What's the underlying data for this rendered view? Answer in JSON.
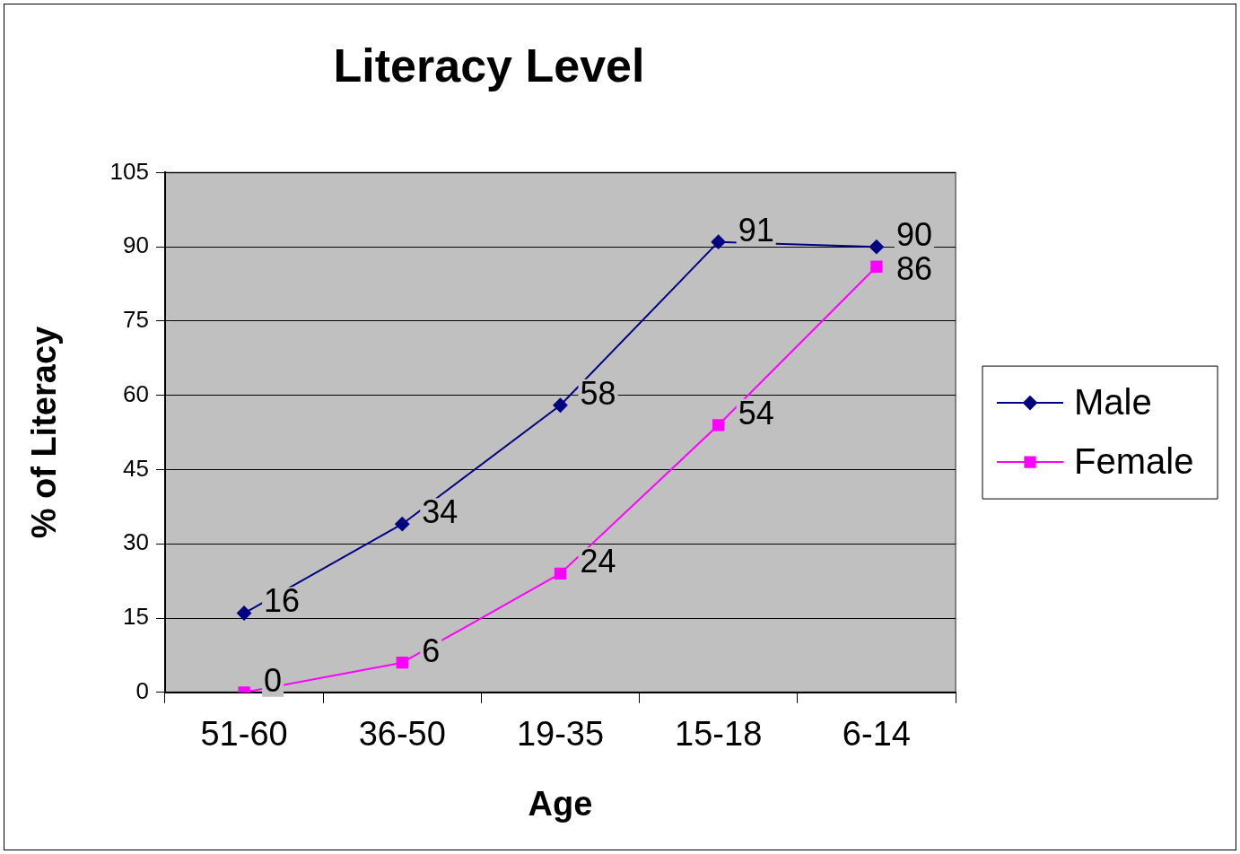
{
  "chart_data": {
    "type": "line",
    "title": "Literacy Level",
    "xlabel": "Age",
    "ylabel": "% of Literacy",
    "categories": [
      "51-60",
      "36-50",
      "19-35",
      "15-18",
      "6-14"
    ],
    "series": [
      {
        "name": "Male",
        "color": "#000080",
        "marker": "diamond",
        "values": [
          16,
          34,
          58,
          91,
          90
        ]
      },
      {
        "name": "Female",
        "color": "#ff00ff",
        "marker": "square",
        "values": [
          0,
          6,
          24,
          54,
          86
        ]
      }
    ],
    "ylim": [
      0,
      105
    ],
    "yticks": [
      0,
      15,
      30,
      45,
      60,
      75,
      90,
      105
    ],
    "grid": "y",
    "legend": "right",
    "data_labels": true,
    "line_style": "solid"
  }
}
